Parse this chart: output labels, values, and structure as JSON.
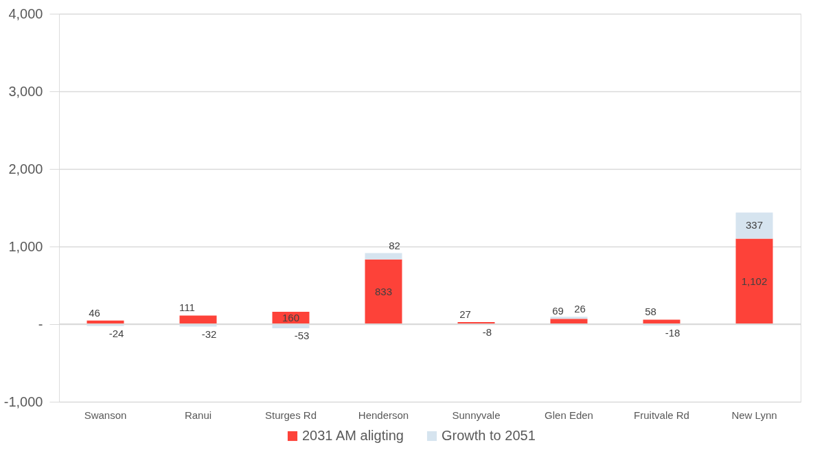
{
  "chart_data": {
    "type": "bar",
    "stacked": true,
    "categories": [
      "Swanson",
      "Ranui",
      "Sturges Rd",
      "Henderson",
      "Sunnyvale",
      "Glen Eden",
      "Fruitvale Rd",
      "New Lynn"
    ],
    "series": [
      {
        "name": "2031 AM aligting",
        "color": "#fd4239",
        "values": [
          46,
          111,
          160,
          833,
          27,
          69,
          58,
          1102
        ],
        "value_labels": [
          "46",
          "111",
          "160",
          "833",
          "27",
          "69",
          "58",
          "1,102"
        ]
      },
      {
        "name": "Growth to 2051",
        "color": "#d6e4ef",
        "values": [
          -24,
          -32,
          -53,
          82,
          -8,
          26,
          -18,
          337
        ],
        "value_labels": [
          "-24",
          "-32",
          "-53",
          "82",
          "-8",
          "26",
          "-18",
          "337"
        ]
      }
    ],
    "ylim": [
      -1000,
      4000
    ],
    "yticks": [
      {
        "value": -1000,
        "label": "-1,000"
      },
      {
        "value": 0,
        "label": "-"
      },
      {
        "value": 1000,
        "label": "1,000"
      },
      {
        "value": 2000,
        "label": "2,000"
      },
      {
        "value": 3000,
        "label": "3,000"
      },
      {
        "value": 4000,
        "label": "4,000"
      }
    ],
    "grid": "y",
    "legend": "bottom"
  }
}
